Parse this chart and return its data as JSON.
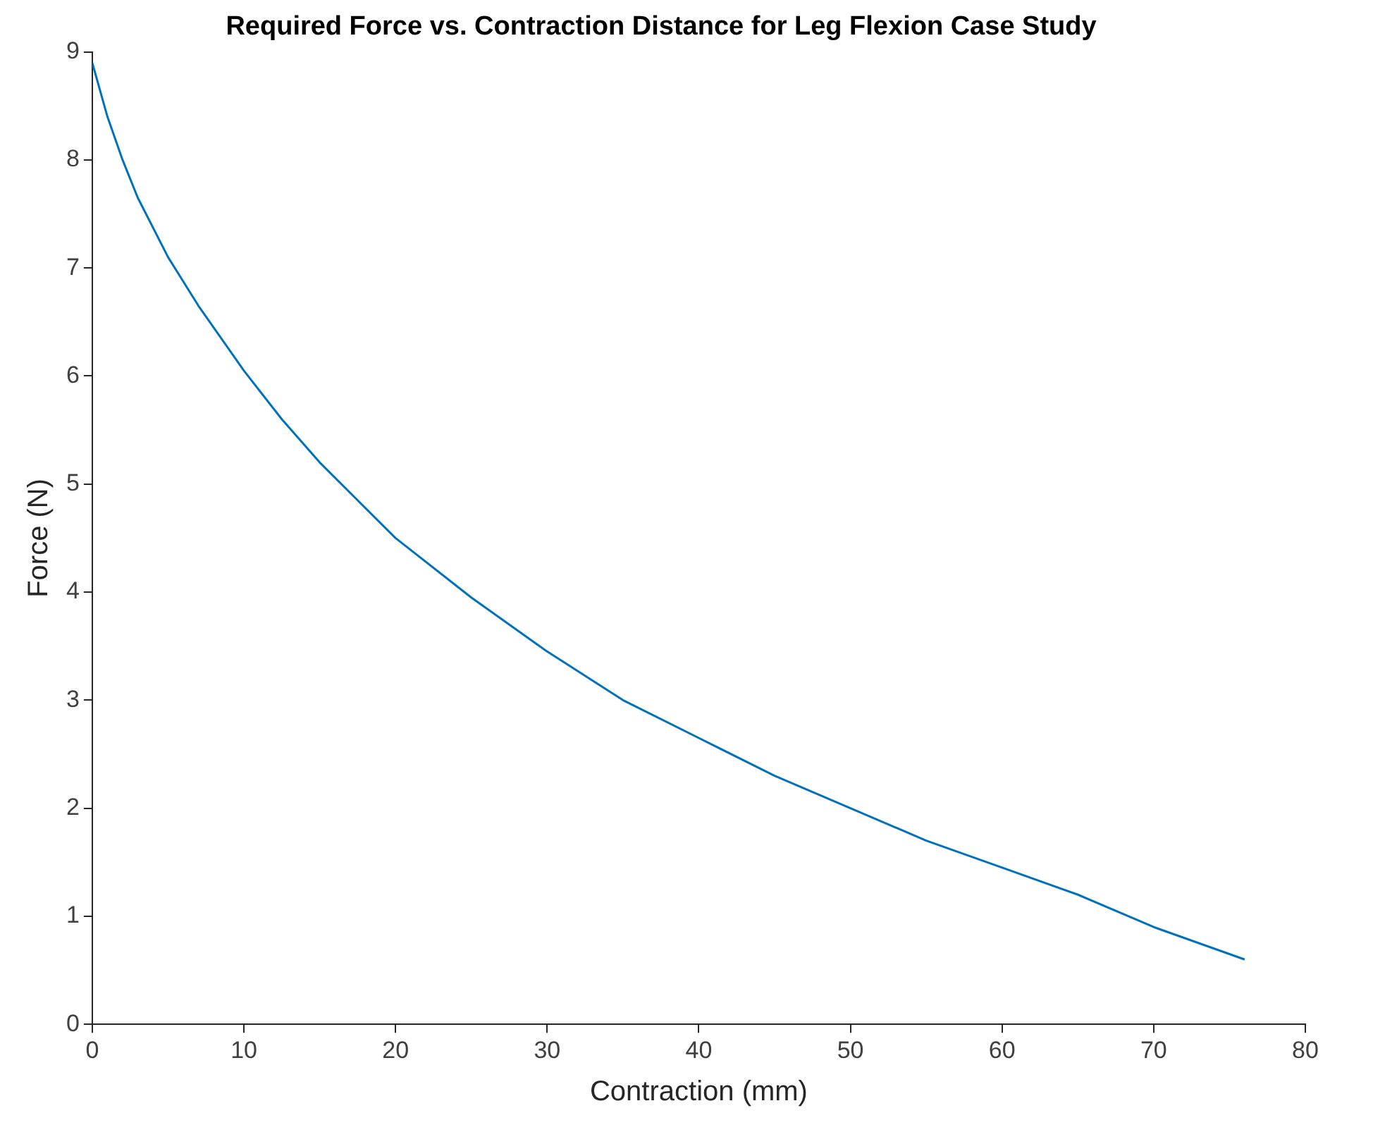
{
  "chart_data": {
    "type": "line",
    "title": "Required Force vs. Contraction Distance for Leg Flexion Case Study",
    "xlabel": "Contraction (mm)",
    "ylabel": "Force (N)",
    "x": [
      0,
      1,
      2,
      3,
      5,
      7,
      10,
      12.5,
      15,
      17.5,
      20,
      25,
      30,
      35,
      40,
      45,
      50,
      55,
      60,
      65,
      70,
      76
    ],
    "series": [
      {
        "color": "#0072bd",
        "values": [
          8.9,
          8.4,
          8.0,
          7.65,
          7.1,
          6.65,
          6.05,
          5.6,
          5.2,
          4.85,
          4.5,
          3.95,
          3.45,
          3.0,
          2.65,
          2.3,
          2.0,
          1.7,
          1.45,
          1.2,
          0.9,
          0.6
        ]
      }
    ],
    "xlim": [
      0,
      80
    ],
    "xticks": [
      0,
      10,
      20,
      30,
      40,
      50,
      60,
      70,
      80
    ],
    "ylim": [
      0,
      9
    ],
    "yticks": [
      0,
      1,
      2,
      3,
      4,
      5,
      6,
      7,
      8,
      9
    ],
    "grid": false,
    "legend": false,
    "marker": "none",
    "line_style": "solid"
  }
}
